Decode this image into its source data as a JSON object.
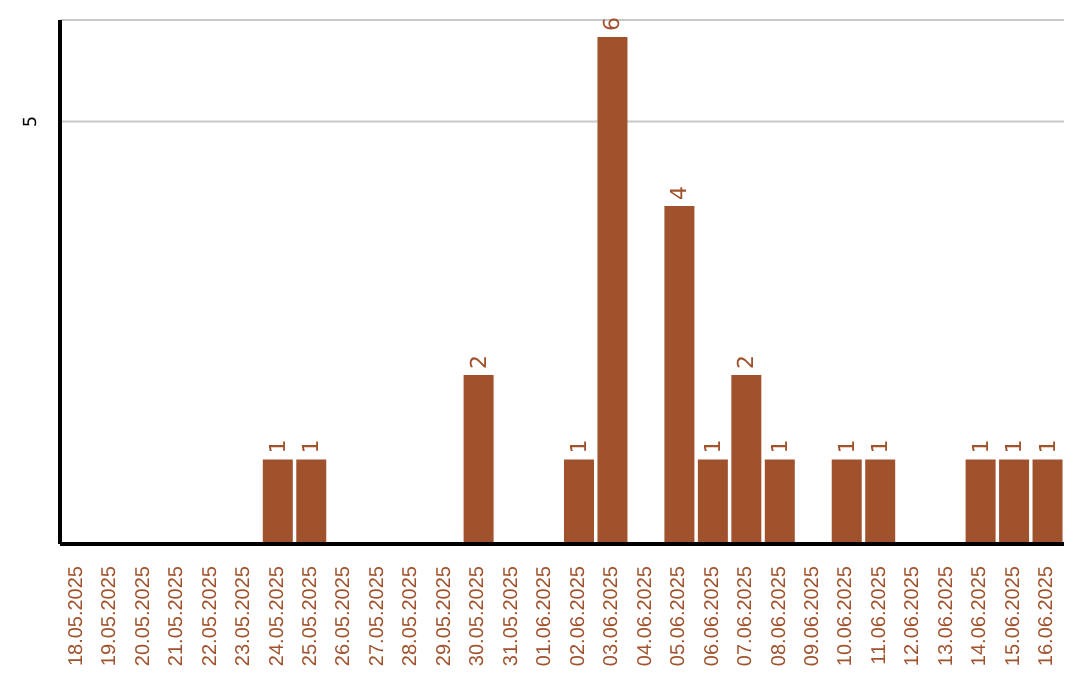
{
  "chart_data": {
    "type": "bar",
    "categories": [
      "18.05.2025",
      "19.05.2025",
      "20.05.2025",
      "21.05.2025",
      "22.05.2025",
      "23.05.2025",
      "24.05.2025",
      "25.05.2025",
      "26.05.2025",
      "27.05.2025",
      "28.05.2025",
      "29.05.2025",
      "30.05.2025",
      "31.05.2025",
      "01.06.2025",
      "02.06.2025",
      "03.06.2025",
      "04.06.2025",
      "05.06.2025",
      "06.06.2025",
      "07.06.2025",
      "08.06.2025",
      "09.06.2025",
      "10.06.2025",
      "11.06.2025",
      "12.06.2025",
      "13.06.2025",
      "14.06.2025",
      "15.06.2025",
      "16.06.2025"
    ],
    "values": [
      0,
      0,
      0,
      0,
      0,
      0,
      1,
      1,
      0,
      0,
      0,
      0,
      2,
      0,
      0,
      1,
      6,
      0,
      4,
      1,
      2,
      1,
      0,
      1,
      1,
      0,
      0,
      1,
      1,
      1
    ],
    "value_labels": [
      null,
      null,
      null,
      null,
      null,
      null,
      "1",
      "1",
      null,
      null,
      null,
      null,
      "2",
      null,
      null,
      "1",
      "6",
      null,
      "4",
      "1",
      "2",
      "1",
      null,
      "1",
      "1",
      null,
      null,
      "1",
      "1",
      "1"
    ],
    "color": "#a0522d",
    "ylim": [
      0,
      6.2
    ],
    "yticks": [
      5
    ],
    "grid": "y"
  }
}
